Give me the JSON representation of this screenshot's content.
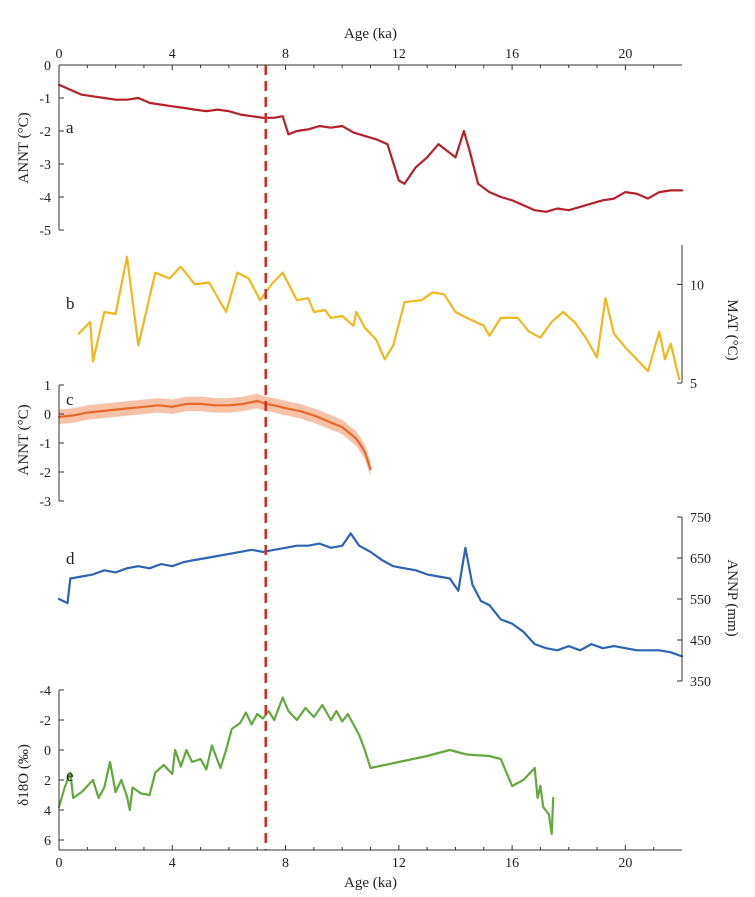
{
  "chart_data": {
    "type": "line",
    "x_axis": {
      "label": "Age (ka)",
      "range": [
        0,
        22
      ],
      "ticks": [
        0,
        4,
        8,
        12,
        16,
        20
      ],
      "tick_labels": [
        "0",
        "4",
        "8",
        "12",
        "16",
        "20"
      ]
    },
    "reference_line": {
      "x": 7.3,
      "style": "dashed",
      "color": "#d42a26"
    },
    "panels": [
      {
        "id": "a",
        "ylabel": "ANNT (°C)",
        "axis_side": "left",
        "ylim": [
          -5,
          0
        ],
        "ticks": [
          0,
          -1,
          -2,
          -3,
          -4,
          -5
        ],
        "tick_labels": [
          "0",
          "-1",
          "-2",
          "-3",
          "-4",
          "-5"
        ],
        "color": "#b5202a",
        "points": [
          [
            0,
            -0.6
          ],
          [
            0.4,
            -0.75
          ],
          [
            0.8,
            -0.9
          ],
          [
            1.2,
            -0.95
          ],
          [
            1.6,
            -1.0
          ],
          [
            2,
            -1.05
          ],
          [
            2.4,
            -1.05
          ],
          [
            2.8,
            -1.0
          ],
          [
            3.2,
            -1.15
          ],
          [
            3.6,
            -1.2
          ],
          [
            4,
            -1.25
          ],
          [
            4.4,
            -1.3
          ],
          [
            4.8,
            -1.35
          ],
          [
            5.2,
            -1.4
          ],
          [
            5.6,
            -1.35
          ],
          [
            6,
            -1.4
          ],
          [
            6.4,
            -1.5
          ],
          [
            6.8,
            -1.55
          ],
          [
            7.2,
            -1.6
          ],
          [
            7.6,
            -1.6
          ],
          [
            7.9,
            -1.55
          ],
          [
            8.1,
            -2.1
          ],
          [
            8.4,
            -2.0
          ],
          [
            8.8,
            -1.95
          ],
          [
            9.2,
            -1.85
          ],
          [
            9.6,
            -1.9
          ],
          [
            10,
            -1.85
          ],
          [
            10.4,
            -2.05
          ],
          [
            10.8,
            -2.15
          ],
          [
            11.2,
            -2.25
          ],
          [
            11.6,
            -2.4
          ],
          [
            12.0,
            -3.5
          ],
          [
            12.2,
            -3.6
          ],
          [
            12.6,
            -3.1
          ],
          [
            13.0,
            -2.8
          ],
          [
            13.4,
            -2.4
          ],
          [
            13.7,
            -2.6
          ],
          [
            14.0,
            -2.8
          ],
          [
            14.3,
            -2.0
          ],
          [
            14.5,
            -2.6
          ],
          [
            14.8,
            -3.6
          ],
          [
            15.2,
            -3.85
          ],
          [
            15.6,
            -4.0
          ],
          [
            16.0,
            -4.1
          ],
          [
            16.4,
            -4.25
          ],
          [
            16.8,
            -4.4
          ],
          [
            17.2,
            -4.45
          ],
          [
            17.6,
            -4.35
          ],
          [
            18.0,
            -4.4
          ],
          [
            18.4,
            -4.3
          ],
          [
            18.8,
            -4.2
          ],
          [
            19.2,
            -4.1
          ],
          [
            19.6,
            -4.05
          ],
          [
            20.0,
            -3.85
          ],
          [
            20.4,
            -3.9
          ],
          [
            20.8,
            -4.05
          ],
          [
            21.2,
            -3.85
          ],
          [
            21.6,
            -3.8
          ],
          [
            22,
            -3.8
          ]
        ]
      },
      {
        "id": "b",
        "ylabel": "MAT (°C)",
        "axis_side": "right",
        "ylim": [
          5,
          12
        ],
        "ticks": [
          10,
          5
        ],
        "tick_labels": [
          "10",
          "5"
        ],
        "color": "#f0b81d",
        "points": [
          [
            0.7,
            7.5
          ],
          [
            1.1,
            8.1
          ],
          [
            1.2,
            6.1
          ],
          [
            1.6,
            8.6
          ],
          [
            2.0,
            8.5
          ],
          [
            2.4,
            11.4
          ],
          [
            2.8,
            6.9
          ],
          [
            3.4,
            10.6
          ],
          [
            3.9,
            10.3
          ],
          [
            4.3,
            10.9
          ],
          [
            4.8,
            10.0
          ],
          [
            5.3,
            10.1
          ],
          [
            5.9,
            8.6
          ],
          [
            6.3,
            10.6
          ],
          [
            6.7,
            10.3
          ],
          [
            7.1,
            9.2
          ],
          [
            7.5,
            10.0
          ],
          [
            7.9,
            10.6
          ],
          [
            8.4,
            9.2
          ],
          [
            8.8,
            9.3
          ],
          [
            9.0,
            8.6
          ],
          [
            9.4,
            8.7
          ],
          [
            9.6,
            8.3
          ],
          [
            10.0,
            8.4
          ],
          [
            10.4,
            7.9
          ],
          [
            10.5,
            8.6
          ],
          [
            10.8,
            7.8
          ],
          [
            11.2,
            7.2
          ],
          [
            11.5,
            6.2
          ],
          [
            11.8,
            6.9
          ],
          [
            12.2,
            9.1
          ],
          [
            12.8,
            9.2
          ],
          [
            13.2,
            9.6
          ],
          [
            13.6,
            9.5
          ],
          [
            14.0,
            8.6
          ],
          [
            14.4,
            8.3
          ],
          [
            15.0,
            7.9
          ],
          [
            15.2,
            7.4
          ],
          [
            15.6,
            8.3
          ],
          [
            16.2,
            8.3
          ],
          [
            16.6,
            7.6
          ],
          [
            17.0,
            7.3
          ],
          [
            17.4,
            8.1
          ],
          [
            17.8,
            8.6
          ],
          [
            18.2,
            8.1
          ],
          [
            18.6,
            7.3
          ],
          [
            19.0,
            6.3
          ],
          [
            19.3,
            9.3
          ],
          [
            19.6,
            7.5
          ],
          [
            20.0,
            6.8
          ],
          [
            20.4,
            6.2
          ],
          [
            20.8,
            5.6
          ],
          [
            21.2,
            7.6
          ],
          [
            21.4,
            6.2
          ],
          [
            21.6,
            7.0
          ],
          [
            21.9,
            5.2
          ]
        ]
      },
      {
        "id": "c",
        "ylabel": "ANNT (°C)",
        "axis_side": "left",
        "ylim": [
          -3,
          1
        ],
        "ticks": [
          1,
          0,
          -1,
          -2,
          -3
        ],
        "tick_labels": [
          "1",
          "0",
          "-1",
          "-2",
          "-3"
        ],
        "color": "#e8682a",
        "band_color": "#f6c3a8",
        "band_halfwidth": 0.25,
        "points": [
          [
            0,
            -0.1
          ],
          [
            0.5,
            -0.05
          ],
          [
            1,
            0.05
          ],
          [
            1.5,
            0.1
          ],
          [
            2,
            0.15
          ],
          [
            2.5,
            0.2
          ],
          [
            3,
            0.25
          ],
          [
            3.5,
            0.3
          ],
          [
            4,
            0.25
          ],
          [
            4.5,
            0.35
          ],
          [
            5,
            0.35
          ],
          [
            5.5,
            0.3
          ],
          [
            6,
            0.3
          ],
          [
            6.5,
            0.35
          ],
          [
            7,
            0.45
          ],
          [
            7.3,
            0.35
          ],
          [
            7.6,
            0.3
          ],
          [
            8,
            0.2
          ],
          [
            8.5,
            0.1
          ],
          [
            9,
            -0.05
          ],
          [
            9.5,
            -0.25
          ],
          [
            10,
            -0.45
          ],
          [
            10.5,
            -0.85
          ],
          [
            10.8,
            -1.3
          ],
          [
            11,
            -1.9
          ]
        ]
      },
      {
        "id": "d",
        "ylabel": "ANNP (mm)",
        "axis_side": "right",
        "ylim": [
          350,
          750
        ],
        "ticks": [
          750,
          650,
          550,
          450,
          350
        ],
        "tick_labels": [
          "750",
          "650",
          "550",
          "450",
          "350"
        ],
        "color": "#2f62b3",
        "points": [
          [
            0,
            550
          ],
          [
            0.3,
            540
          ],
          [
            0.4,
            600
          ],
          [
            0.8,
            605
          ],
          [
            1.2,
            610
          ],
          [
            1.6,
            620
          ],
          [
            2,
            615
          ],
          [
            2.4,
            625
          ],
          [
            2.8,
            630
          ],
          [
            3.2,
            625
          ],
          [
            3.6,
            635
          ],
          [
            4,
            630
          ],
          [
            4.4,
            640
          ],
          [
            4.8,
            645
          ],
          [
            5.2,
            650
          ],
          [
            5.6,
            655
          ],
          [
            6,
            660
          ],
          [
            6.4,
            665
          ],
          [
            6.8,
            670
          ],
          [
            7.2,
            665
          ],
          [
            7.6,
            670
          ],
          [
            8,
            675
          ],
          [
            8.4,
            680
          ],
          [
            8.8,
            680
          ],
          [
            9.2,
            685
          ],
          [
            9.6,
            675
          ],
          [
            10,
            680
          ],
          [
            10.3,
            710
          ],
          [
            10.6,
            680
          ],
          [
            11,
            665
          ],
          [
            11.4,
            645
          ],
          [
            11.8,
            630
          ],
          [
            12.2,
            625
          ],
          [
            12.6,
            620
          ],
          [
            13,
            610
          ],
          [
            13.4,
            605
          ],
          [
            13.8,
            600
          ],
          [
            14.1,
            570
          ],
          [
            14.35,
            675
          ],
          [
            14.6,
            585
          ],
          [
            14.9,
            545
          ],
          [
            15.2,
            535
          ],
          [
            15.6,
            500
          ],
          [
            16,
            490
          ],
          [
            16.4,
            470
          ],
          [
            16.8,
            440
          ],
          [
            17.2,
            430
          ],
          [
            17.6,
            425
          ],
          [
            18,
            435
          ],
          [
            18.4,
            425
          ],
          [
            18.8,
            440
          ],
          [
            19.2,
            430
          ],
          [
            19.6,
            435
          ],
          [
            20,
            430
          ],
          [
            20.4,
            425
          ],
          [
            20.8,
            425
          ],
          [
            21.2,
            425
          ],
          [
            21.6,
            420
          ],
          [
            22,
            410
          ]
        ]
      },
      {
        "id": "e",
        "ylabel": "δ18O (‰)",
        "axis_side": "left",
        "ylim": [
          6,
          -4
        ],
        "ticks": [
          -4,
          -2,
          0,
          2,
          4,
          6
        ],
        "tick_labels": [
          "-4",
          "-2",
          "0",
          "2",
          "4",
          "6"
        ],
        "color": "#63a83f",
        "points": [
          [
            0,
            3.8
          ],
          [
            0.2,
            2.5
          ],
          [
            0.4,
            1.5
          ],
          [
            0.5,
            3.2
          ],
          [
            0.8,
            2.8
          ],
          [
            1.2,
            2.0
          ],
          [
            1.4,
            3.2
          ],
          [
            1.6,
            2.5
          ],
          [
            1.8,
            0.8
          ],
          [
            2.0,
            2.8
          ],
          [
            2.2,
            2.0
          ],
          [
            2.4,
            3.1
          ],
          [
            2.5,
            4.0
          ],
          [
            2.6,
            2.5
          ],
          [
            2.9,
            2.9
          ],
          [
            3.2,
            3.0
          ],
          [
            3.4,
            1.5
          ],
          [
            3.7,
            1.0
          ],
          [
            4.0,
            1.6
          ],
          [
            4.1,
            0.0
          ],
          [
            4.3,
            1.1
          ],
          [
            4.5,
            0.0
          ],
          [
            4.7,
            0.8
          ],
          [
            5.0,
            0.6
          ],
          [
            5.2,
            1.3
          ],
          [
            5.4,
            -0.3
          ],
          [
            5.7,
            1.2
          ],
          [
            5.9,
            0.0
          ],
          [
            6.1,
            -1.4
          ],
          [
            6.4,
            -1.8
          ],
          [
            6.6,
            -2.5
          ],
          [
            6.8,
            -1.7
          ],
          [
            7.0,
            -2.4
          ],
          [
            7.2,
            -2.1
          ],
          [
            7.4,
            -2.6
          ],
          [
            7.6,
            -2.0
          ],
          [
            7.9,
            -3.5
          ],
          [
            8.1,
            -2.6
          ],
          [
            8.4,
            -2.0
          ],
          [
            8.7,
            -2.8
          ],
          [
            9.0,
            -2.2
          ],
          [
            9.3,
            -3.0
          ],
          [
            9.6,
            -2.0
          ],
          [
            9.8,
            -2.6
          ],
          [
            10.0,
            -1.9
          ],
          [
            10.2,
            -2.4
          ],
          [
            10.4,
            -1.7
          ],
          [
            10.6,
            -1.0
          ],
          [
            10.8,
            0.0
          ],
          [
            11.0,
            1.2
          ],
          [
            12.0,
            0.8
          ],
          [
            13.0,
            0.4
          ],
          [
            13.8,
            0.0
          ],
          [
            14.4,
            0.3
          ],
          [
            15.2,
            0.4
          ],
          [
            15.6,
            0.6
          ],
          [
            16.0,
            2.4
          ],
          [
            16.4,
            2.0
          ],
          [
            16.8,
            1.2
          ],
          [
            16.9,
            3.2
          ],
          [
            17.0,
            2.4
          ],
          [
            17.1,
            3.8
          ],
          [
            17.3,
            4.3
          ],
          [
            17.4,
            5.6
          ],
          [
            17.45,
            3.2
          ]
        ]
      }
    ]
  }
}
